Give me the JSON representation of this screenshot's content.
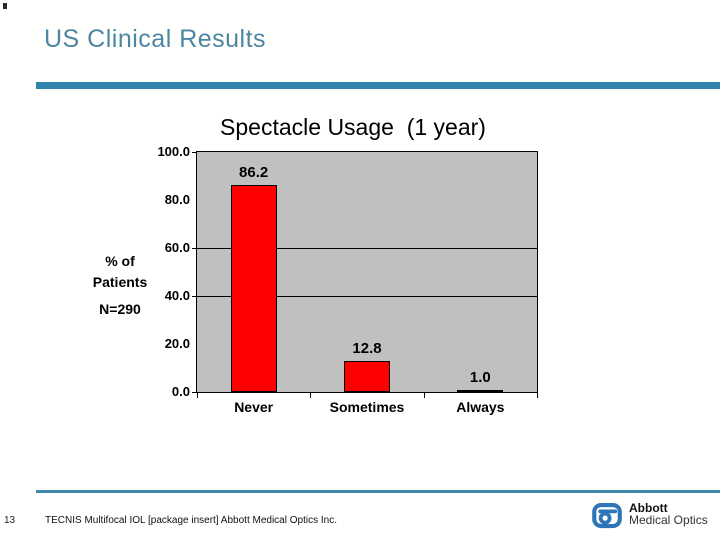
{
  "slide": {
    "title": "US Clinical Results"
  },
  "chart_data": {
    "type": "bar",
    "title": "Spectacle Usage  (1 year)",
    "categories": [
      "Never",
      "Sometimes",
      "Always"
    ],
    "values": [
      86.2,
      12.8,
      1.0
    ],
    "data_labels": [
      "86.2",
      "12.8",
      "1.0"
    ],
    "ylabel_lines": [
      "% of",
      "Patients",
      "N=290"
    ],
    "ylim": [
      0,
      100
    ],
    "yticks": [
      {
        "label": "100.0",
        "value": 100,
        "gridline": false,
        "tick": true
      },
      {
        "label": "80.0",
        "value": 80,
        "gridline": false,
        "tick": false
      },
      {
        "label": "60.0",
        "value": 60,
        "gridline": true,
        "tick": true
      },
      {
        "label": "40.0",
        "value": 40,
        "gridline": true,
        "tick": true
      },
      {
        "label": "20.0",
        "value": 20,
        "gridline": false,
        "tick": false
      },
      {
        "label": "0.0",
        "value": 0,
        "gridline": false,
        "tick": true
      }
    ],
    "bar_color": "#ff0000",
    "plot_bg": "#c0c0c0",
    "legend_position": "none",
    "grid": "horizontal"
  },
  "footer": {
    "page_number": "13",
    "citation": "TECNIS Multifocal IOL [package insert] Abbott Medical Optics Inc.",
    "logo": {
      "brand": "Abbott",
      "sub": "Medical Optics",
      "color": "#2e74b9"
    }
  },
  "theme": {
    "accent_bar": "#3183a9",
    "footer_line": "#3e8aaa",
    "title_color": "#4d86a3"
  }
}
